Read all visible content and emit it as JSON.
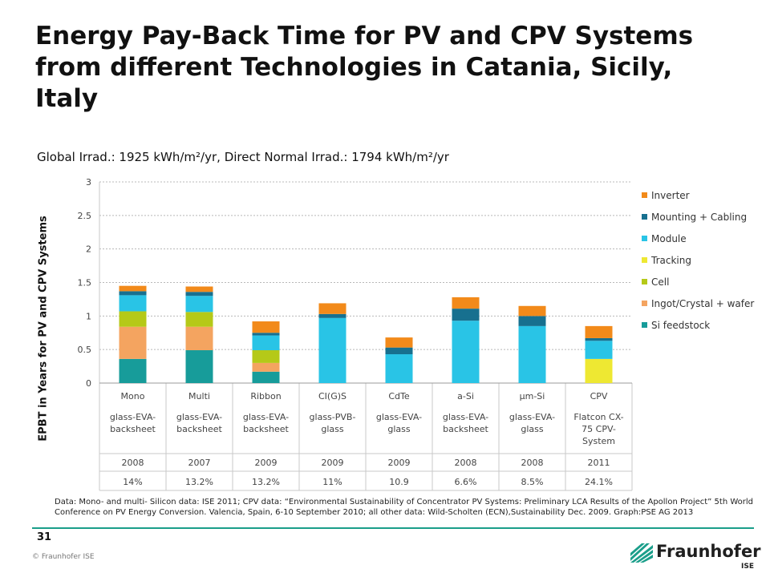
{
  "slide": {
    "title": "Energy Pay-Back Time for PV and CPV Systems from different Technologies in Catania, Sicily, Italy",
    "subtitle": "Global Irrad.: 1925 kWh/m²/yr, Direct Normal Irrad.: 1794 kWh/m²/yr",
    "footnote": "Data: Mono- and multi- Silicon data: ISE 2011; CPV data: “Environmental Sustainability of Concentrator PV Systems: Preliminary LCA Results of the Apollon Project” 5th World Conference on PV Energy Conversion. Valencia, Spain, 6-10 September 2010; all other data: Wild-Scholten (ECN),Sustainability Dec. 2009. Graph:PSE AG 2013",
    "page_number": "31",
    "copyright": "© Fraunhofer ISE",
    "brand_name": "Fraunhofer",
    "brand_sub": "ISE",
    "accent_color": "#1a9e8a"
  },
  "chart_data": {
    "type": "bar",
    "stacked": true,
    "title": "",
    "xlabel": "",
    "ylabel": "EPBT in Years for PV and CPV Systems",
    "ylim": [
      0,
      3
    ],
    "yticks": [
      "0",
      "0.5",
      "1",
      "1.5",
      "2",
      "2.5",
      "3"
    ],
    "grid": true,
    "legend_position": "right",
    "categories": [
      "Mono",
      "Multi",
      "Ribbon",
      "CI(G)S",
      "CdTe",
      "a-Si",
      "µm-Si",
      "CPV"
    ],
    "encapsulation": [
      [
        "glass-EVA-",
        "backsheet"
      ],
      [
        "glass-EVA-",
        "backsheet"
      ],
      [
        "glass-EVA-",
        "backsheet"
      ],
      [
        "glass-PVB-",
        "glass"
      ],
      [
        "glass-EVA-",
        "glass"
      ],
      [
        "glass-EVA-",
        "backsheet"
      ],
      [
        "glass-EVA-",
        "glass"
      ],
      [
        "Flatcon CX-",
        "75 CPV-",
        "System"
      ]
    ],
    "years": [
      "2008",
      "2007",
      "2009",
      "2009",
      "2009",
      "2008",
      "2008",
      "2011"
    ],
    "efficiencies": [
      "14%",
      "13.2%",
      "13.2%",
      "11%",
      "10.9",
      "6.6%",
      "8.5%",
      "24.1%"
    ],
    "series": [
      {
        "name": "Si feedstock",
        "color": "#179c9a",
        "values": [
          0.36,
          0.49,
          0.17,
          0,
          0,
          0,
          0,
          0
        ]
      },
      {
        "name": "Ingot/Crystal + wafer",
        "color": "#f4a460",
        "values": [
          0.48,
          0.35,
          0.13,
          0,
          0,
          0,
          0,
          0
        ]
      },
      {
        "name": "Cell",
        "color": "#b5c918",
        "values": [
          0.23,
          0.22,
          0.19,
          0,
          0,
          0,
          0,
          0
        ]
      },
      {
        "name": "Tracking",
        "color": "#eee832",
        "values": [
          0,
          0,
          0,
          0,
          0,
          0,
          0,
          0.36
        ]
      },
      {
        "name": "Module",
        "color": "#29c4e6",
        "values": [
          0.24,
          0.24,
          0.22,
          0.97,
          0.43,
          0.93,
          0.85,
          0.27
        ]
      },
      {
        "name": "Mounting + Cabling",
        "color": "#17708f",
        "values": [
          0.06,
          0.06,
          0.04,
          0.06,
          0.1,
          0.18,
          0.15,
          0.04
        ]
      },
      {
        "name": "Inverter",
        "color": "#f28a1a",
        "values": [
          0.08,
          0.08,
          0.17,
          0.16,
          0.15,
          0.17,
          0.15,
          0.18
        ]
      }
    ]
  }
}
